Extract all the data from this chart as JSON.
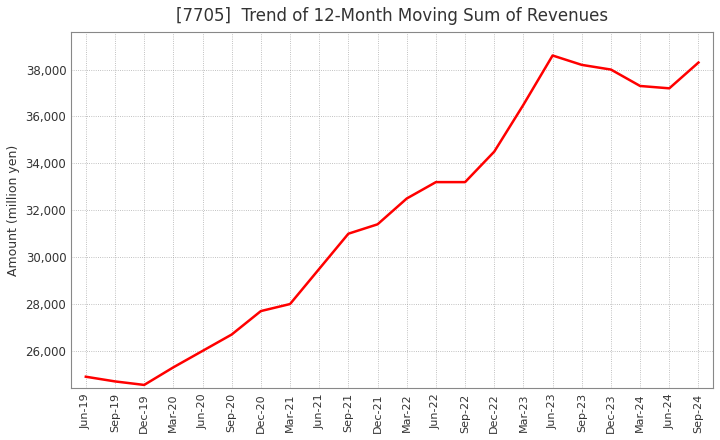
{
  "title": "[7705]  Trend of 12-Month Moving Sum of Revenues",
  "ylabel": "Amount (million yen)",
  "line_color": "#ff0000",
  "line_width": 1.8,
  "background_color": "#ffffff",
  "plot_bg_color": "#ffffff",
  "grid_color": "#999999",
  "title_color": "#333333",
  "ylim": [
    24400,
    39600
  ],
  "yticks": [
    26000,
    28000,
    30000,
    32000,
    34000,
    36000,
    38000
  ],
  "x_labels": [
    "Jun-19",
    "Sep-19",
    "Dec-19",
    "Mar-20",
    "Jun-20",
    "Sep-20",
    "Dec-20",
    "Mar-21",
    "Jun-21",
    "Sep-21",
    "Dec-21",
    "Mar-22",
    "Jun-22",
    "Sep-22",
    "Dec-22",
    "Mar-23",
    "Jun-23",
    "Sep-23",
    "Dec-23",
    "Mar-24",
    "Jun-24",
    "Sep-24"
  ],
  "values": [
    24900,
    24700,
    24550,
    25300,
    26000,
    26700,
    27700,
    28000,
    29500,
    31000,
    31400,
    32500,
    33200,
    33200,
    34500,
    36500,
    38600,
    38200,
    38000,
    37300,
    37200,
    38300
  ]
}
